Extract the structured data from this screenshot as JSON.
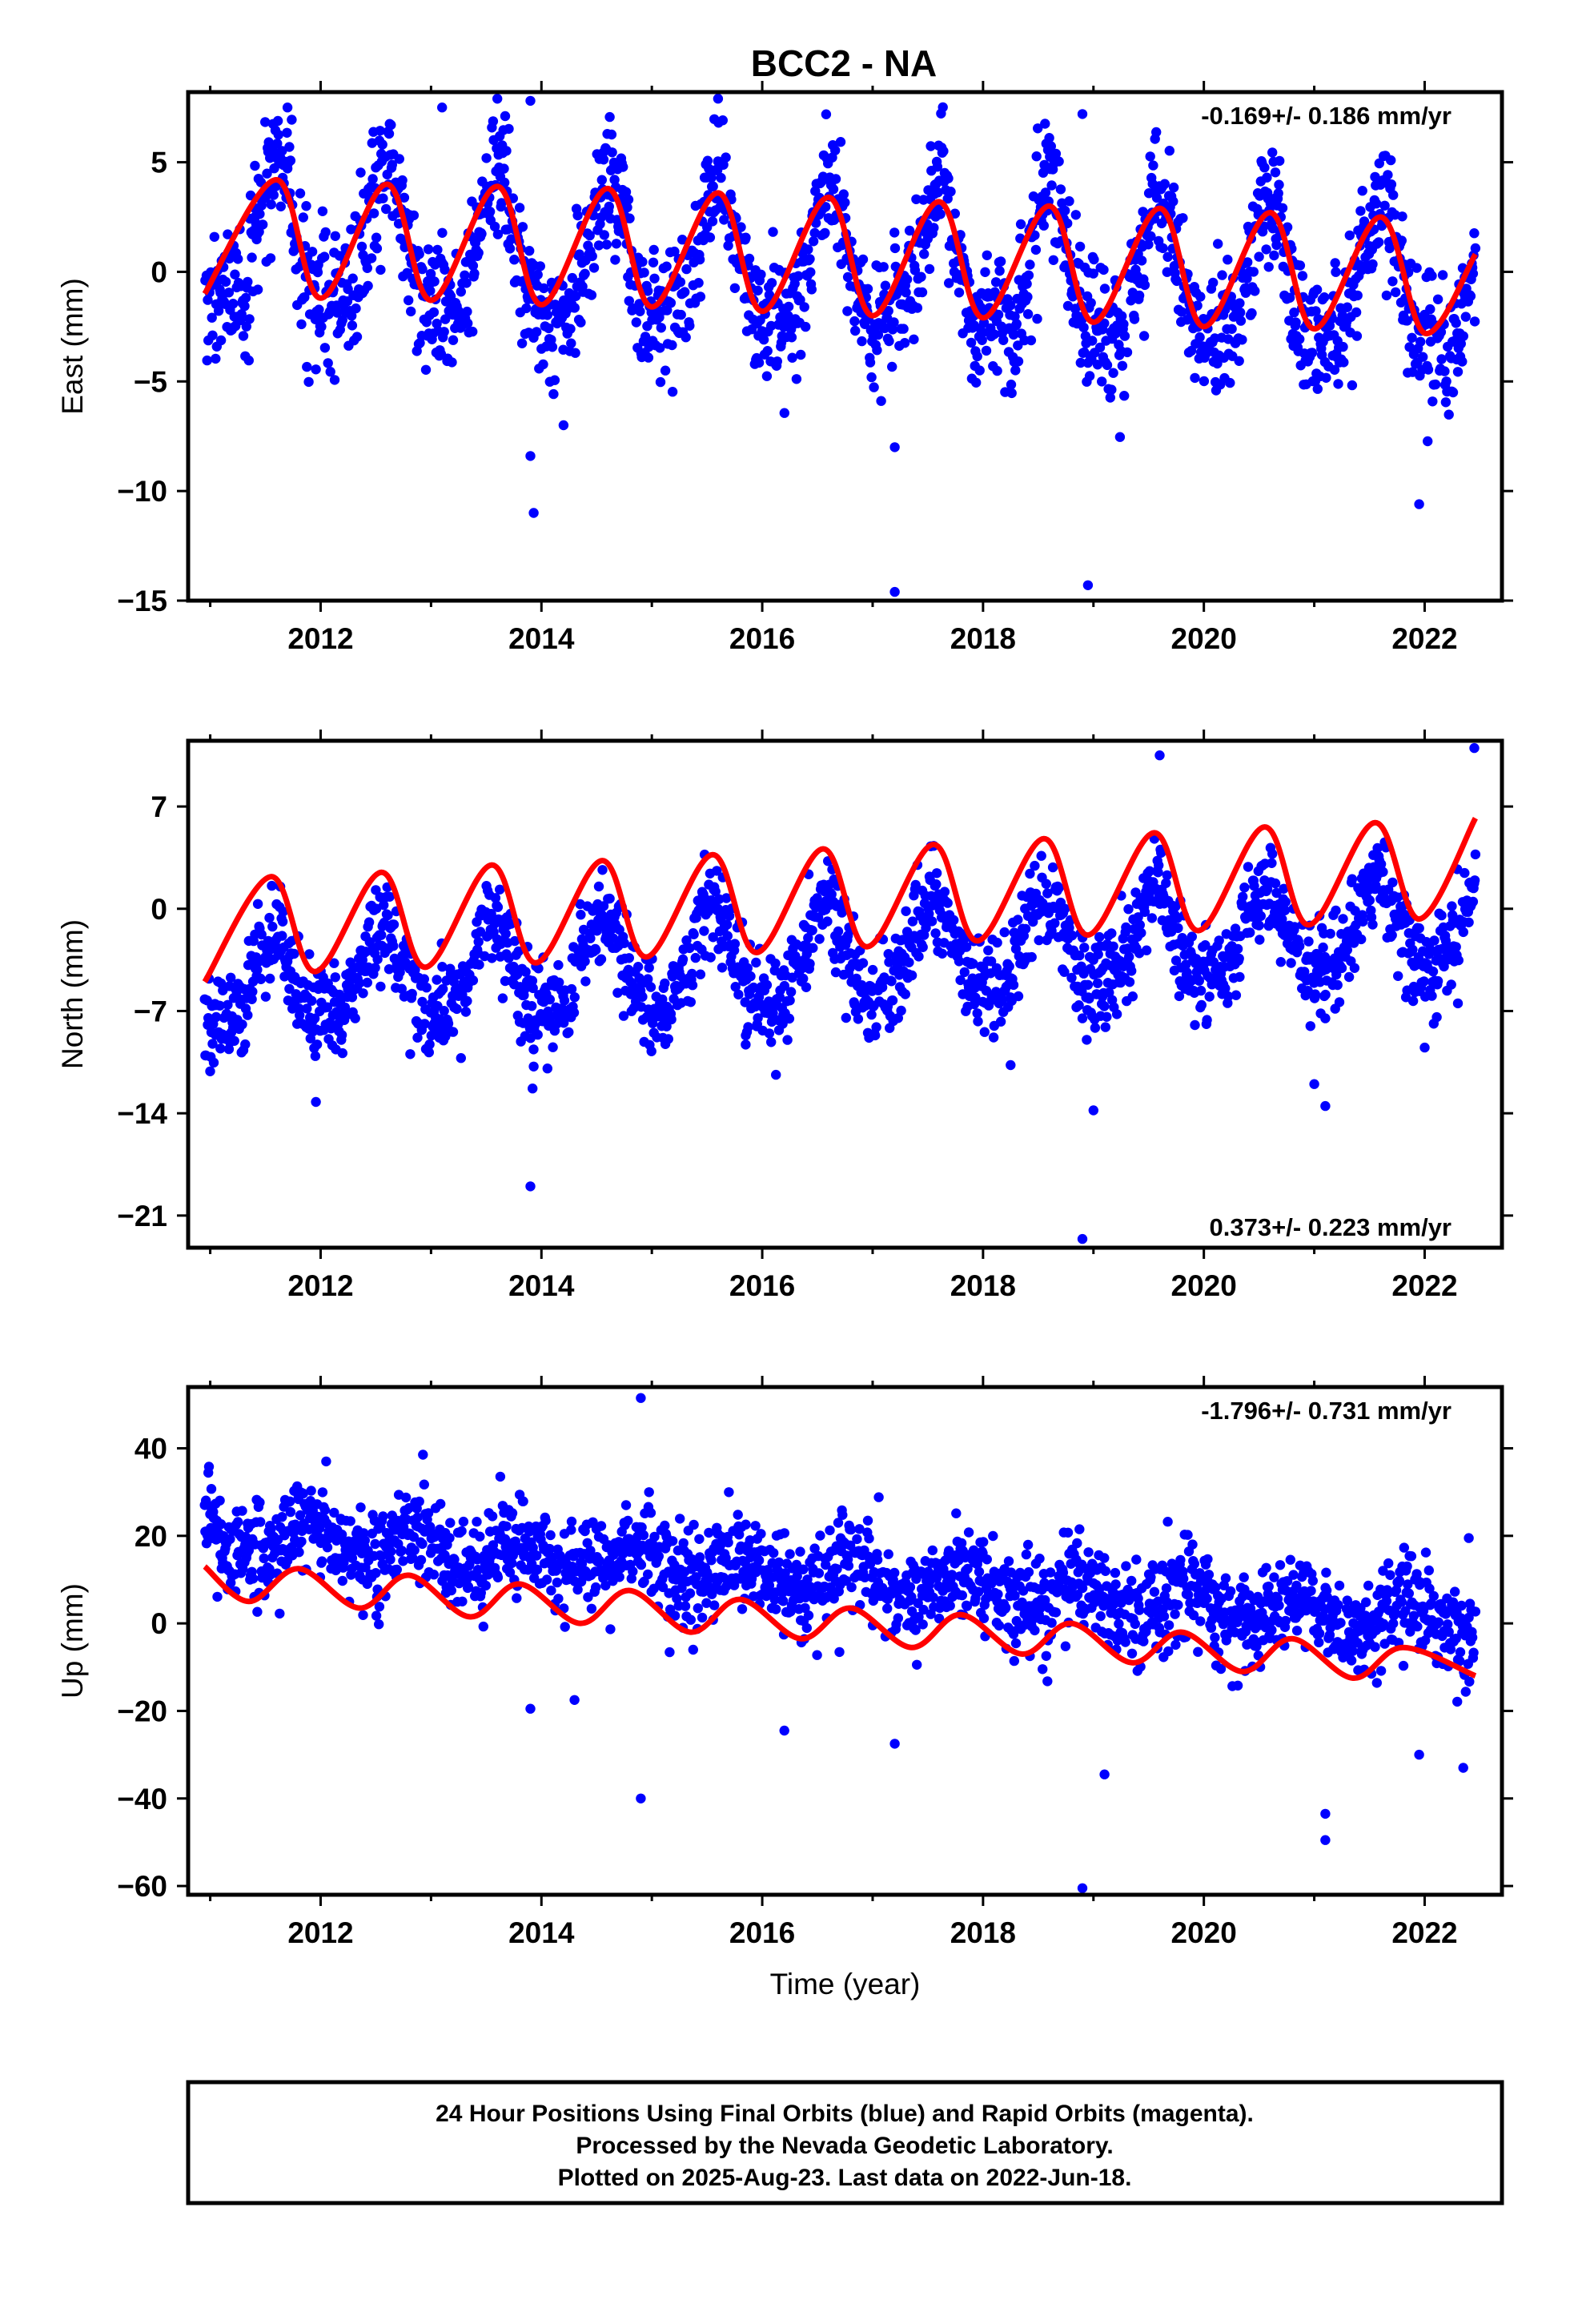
{
  "title": "BCC2 - NA",
  "footer": {
    "lines": [
      "24 Hour Positions Using Final Orbits (blue) and Rapid Orbits (magenta).",
      "Processed by the Nevada Geodetic Laboratory.",
      "Plotted on 2025-Aug-23. Last data on 2022-Jun-18."
    ]
  },
  "colors": {
    "data": "#0000ff",
    "model": "#ff0000",
    "frame": "#000000"
  },
  "chart_data": [
    {
      "type": "scatter",
      "ylabel": "East (mm)",
      "xlabel": "",
      "rate_label": "-0.169+/- 0.186 mm/yr",
      "rate_position": "top-right",
      "xlim": [
        2010.8,
        2022.7
      ],
      "ylim": [
        -15,
        8.2
      ],
      "xticks": [
        2012,
        2014,
        2016,
        2018,
        2020,
        2022
      ],
      "yticks": [
        5,
        0,
        -5,
        -10,
        -15
      ],
      "ytick_labels": [
        "5",
        "0",
        "−5",
        "−10",
        "−15"
      ],
      "data_start": 2010.95,
      "data_end": 2022.46,
      "trend_mm_per_yr": -0.169,
      "offset_mm": 0.1,
      "annual_amplitude_mm": 3.1,
      "annual_peak_phase": 0.6,
      "semiannual_amplitude_mm": 0.9,
      "scatter_sd_mm": 1.5,
      "model_series": [
        {
          "x": 2010.95,
          "y": -1.0
        },
        {
          "x": 2011.6,
          "y": 4.2
        },
        {
          "x": 2012.0,
          "y": -1.2
        },
        {
          "x": 2012.6,
          "y": 4.0
        },
        {
          "x": 2013.0,
          "y": -1.3
        },
        {
          "x": 2013.6,
          "y": 3.9
        },
        {
          "x": 2014.0,
          "y": -1.5
        },
        {
          "x": 2014.6,
          "y": 3.8
        },
        {
          "x": 2015.0,
          "y": -1.6
        },
        {
          "x": 2015.6,
          "y": 3.6
        },
        {
          "x": 2016.0,
          "y": -1.8
        },
        {
          "x": 2016.6,
          "y": 3.4
        },
        {
          "x": 2017.0,
          "y": -2.0
        },
        {
          "x": 2017.6,
          "y": 3.2
        },
        {
          "x": 2018.0,
          "y": -2.1
        },
        {
          "x": 2018.6,
          "y": 3.0
        },
        {
          "x": 2019.0,
          "y": -2.3
        },
        {
          "x": 2019.6,
          "y": 2.9
        },
        {
          "x": 2020.0,
          "y": -2.5
        },
        {
          "x": 2020.6,
          "y": 2.7
        },
        {
          "x": 2021.0,
          "y": -2.6
        },
        {
          "x": 2021.6,
          "y": 2.5
        },
        {
          "x": 2022.0,
          "y": -2.8
        },
        {
          "x": 2022.46,
          "y": 0.8
        }
      ],
      "outliers": [
        {
          "x": 2013.9,
          "y": -8.4
        },
        {
          "x": 2013.93,
          "y": -11.0
        },
        {
          "x": 2014.2,
          "y": -7.0
        },
        {
          "x": 2013.9,
          "y": 7.8
        },
        {
          "x": 2017.2,
          "y": -14.6
        },
        {
          "x": 2018.95,
          "y": -14.3
        },
        {
          "x": 2021.95,
          "y": -10.6
        },
        {
          "x": 2017.2,
          "y": -8.0
        },
        {
          "x": 2013.1,
          "y": 7.5
        },
        {
          "x": 2011.7,
          "y": 7.5
        },
        {
          "x": 2015.6,
          "y": 7.9
        },
        {
          "x": 2018.9,
          "y": 7.2
        }
      ]
    },
    {
      "type": "scatter",
      "ylabel": "North (mm)",
      "xlabel": "",
      "rate_label": "0.373+/- 0.223 mm/yr",
      "rate_position": "bottom-right",
      "xlim": [
        2010.8,
        2022.7
      ],
      "ylim": [
        -23.2,
        11.5
      ],
      "xticks": [
        2012,
        2014,
        2016,
        2018,
        2020,
        2022
      ],
      "yticks": [
        7,
        0,
        -7,
        -14,
        -21
      ],
      "ytick_labels": [
        "7",
        "0",
        "−7",
        "−14",
        "−21"
      ],
      "data_start": 2010.95,
      "data_end": 2022.46,
      "trend_mm_per_yr": 0.373,
      "offset_mm": -3.3,
      "annual_amplitude_mm": 3.1,
      "annual_peak_phase": 0.55,
      "semiannual_amplitude_mm": 0.5,
      "scatter_sd_mm": 1.6,
      "model_series": [
        {
          "x": 2010.95,
          "y": -5.0
        },
        {
          "x": 2011.55,
          "y": 2.2
        },
        {
          "x": 2011.95,
          "y": -4.3
        },
        {
          "x": 2012.55,
          "y": 2.5
        },
        {
          "x": 2012.95,
          "y": -4.0
        },
        {
          "x": 2013.55,
          "y": 3.0
        },
        {
          "x": 2013.95,
          "y": -3.7
        },
        {
          "x": 2014.55,
          "y": 3.3
        },
        {
          "x": 2014.95,
          "y": -3.3
        },
        {
          "x": 2015.55,
          "y": 3.7
        },
        {
          "x": 2015.95,
          "y": -3.0
        },
        {
          "x": 2016.55,
          "y": 4.1
        },
        {
          "x": 2016.95,
          "y": -2.6
        },
        {
          "x": 2017.55,
          "y": 4.4
        },
        {
          "x": 2017.95,
          "y": -2.2
        },
        {
          "x": 2018.55,
          "y": 4.8
        },
        {
          "x": 2018.95,
          "y": -1.8
        },
        {
          "x": 2019.55,
          "y": 5.2
        },
        {
          "x": 2019.95,
          "y": -1.5
        },
        {
          "x": 2020.55,
          "y": 5.6
        },
        {
          "x": 2020.95,
          "y": -1.1
        },
        {
          "x": 2021.55,
          "y": 5.9
        },
        {
          "x": 2021.95,
          "y": -0.7
        },
        {
          "x": 2022.46,
          "y": 6.2
        }
      ],
      "outliers": [
        {
          "x": 2013.9,
          "y": -19.0
        },
        {
          "x": 2013.92,
          "y": -12.3
        },
        {
          "x": 2013.93,
          "y": -10.8
        },
        {
          "x": 2018.9,
          "y": -22.6
        },
        {
          "x": 2019.0,
          "y": -13.8
        },
        {
          "x": 2018.25,
          "y": -10.7
        },
        {
          "x": 2015.85,
          "y": -9.3
        },
        {
          "x": 2021.0,
          "y": -12.0
        },
        {
          "x": 2021.1,
          "y": -13.5
        },
        {
          "x": 2022.0,
          "y": -9.5
        },
        {
          "x": 2021.1,
          "y": -7.5
        },
        {
          "x": 2022.45,
          "y": 11.0
        },
        {
          "x": 2019.6,
          "y": 10.5
        },
        {
          "x": 2018.9,
          "y": -7.5
        }
      ]
    },
    {
      "type": "scatter",
      "ylabel": "Up (mm)",
      "xlabel": "Time (year)",
      "rate_label": "-1.796+/- 0.731 mm/yr",
      "rate_position": "top-right",
      "xlim": [
        2010.8,
        2022.7
      ],
      "ylim": [
        -62,
        54
      ],
      "xticks": [
        2012,
        2014,
        2016,
        2018,
        2020,
        2022
      ],
      "yticks": [
        40,
        20,
        0,
        -20,
        -40,
        -60
      ],
      "ytick_labels": [
        "40",
        "20",
        "0",
        "−20",
        "−40",
        "−60"
      ],
      "data_start": 2010.95,
      "data_end": 2022.46,
      "trend_mm_per_yr": -1.796,
      "offset_mm": 10.5,
      "annual_amplitude_mm": 3.6,
      "annual_peak_phase": 0.85,
      "semiannual_amplitude_mm": 0.6,
      "scatter_sd_mm": 5.5,
      "model_series": [
        {
          "x": 2010.95,
          "y": 13.0
        },
        {
          "x": 2011.35,
          "y": 5.0
        },
        {
          "x": 2011.8,
          "y": 12.5
        },
        {
          "x": 2012.35,
          "y": 3.5
        },
        {
          "x": 2012.8,
          "y": 11.0
        },
        {
          "x": 2013.35,
          "y": 1.5
        },
        {
          "x": 2013.8,
          "y": 9.0
        },
        {
          "x": 2014.35,
          "y": 0.0
        },
        {
          "x": 2014.8,
          "y": 7.5
        },
        {
          "x": 2015.35,
          "y": -2.0
        },
        {
          "x": 2015.8,
          "y": 5.5
        },
        {
          "x": 2016.35,
          "y": -3.5
        },
        {
          "x": 2016.8,
          "y": 3.5
        },
        {
          "x": 2017.35,
          "y": -5.5
        },
        {
          "x": 2017.8,
          "y": 2.0
        },
        {
          "x": 2018.35,
          "y": -7.0
        },
        {
          "x": 2018.8,
          "y": 0.0
        },
        {
          "x": 2019.35,
          "y": -9.0
        },
        {
          "x": 2019.8,
          "y": -2.0
        },
        {
          "x": 2020.35,
          "y": -11.0
        },
        {
          "x": 2020.8,
          "y": -3.5
        },
        {
          "x": 2021.35,
          "y": -12.5
        },
        {
          "x": 2021.8,
          "y": -5.5
        },
        {
          "x": 2022.46,
          "y": -12.0
        }
      ],
      "outliers": [
        {
          "x": 2014.9,
          "y": 51.5
        },
        {
          "x": 2014.9,
          "y": -40.0
        },
        {
          "x": 2018.9,
          "y": -60.5
        },
        {
          "x": 2021.1,
          "y": -49.5
        },
        {
          "x": 2021.1,
          "y": -43.5
        },
        {
          "x": 2012.05,
          "y": 37.0
        },
        {
          "x": 2011.8,
          "y": 29.0
        },
        {
          "x": 2013.9,
          "y": -19.5
        },
        {
          "x": 2014.3,
          "y": -17.5
        },
        {
          "x": 2016.2,
          "y": -24.5
        },
        {
          "x": 2017.2,
          "y": -27.5
        },
        {
          "x": 2019.1,
          "y": -34.5
        },
        {
          "x": 2021.95,
          "y": -30.0
        },
        {
          "x": 2022.35,
          "y": -33.0
        },
        {
          "x": 2022.4,
          "y": 19.5
        }
      ]
    }
  ]
}
